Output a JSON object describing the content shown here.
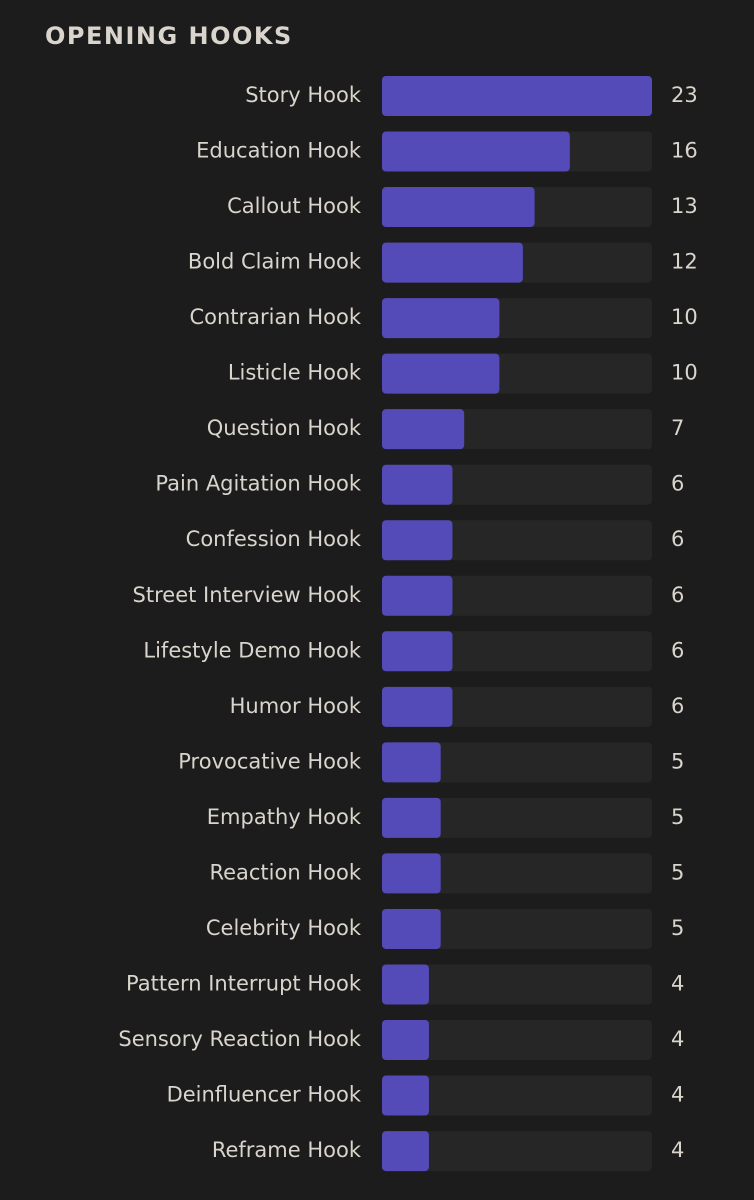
{
  "chart_data": {
    "type": "bar",
    "orientation": "horizontal",
    "title": "OPENING HOOKS",
    "categories": [
      "Story Hook",
      "Education Hook",
      "Callout Hook",
      "Bold Claim Hook",
      "Contrarian Hook",
      "Listicle Hook",
      "Question Hook",
      "Pain Agitation Hook",
      "Confession Hook",
      "Street Interview Hook",
      "Lifestyle Demo Hook",
      "Humor Hook",
      "Provocative Hook",
      "Empathy Hook",
      "Reaction Hook",
      "Celebrity Hook",
      "Pattern Interrupt Hook",
      "Sensory Reaction Hook",
      "Deinfluencer Hook",
      "Reframe Hook"
    ],
    "values": [
      23,
      16,
      13,
      12,
      10,
      10,
      7,
      6,
      6,
      6,
      6,
      6,
      5,
      5,
      5,
      5,
      4,
      4,
      4,
      4
    ],
    "color": "#554bb8"
  }
}
